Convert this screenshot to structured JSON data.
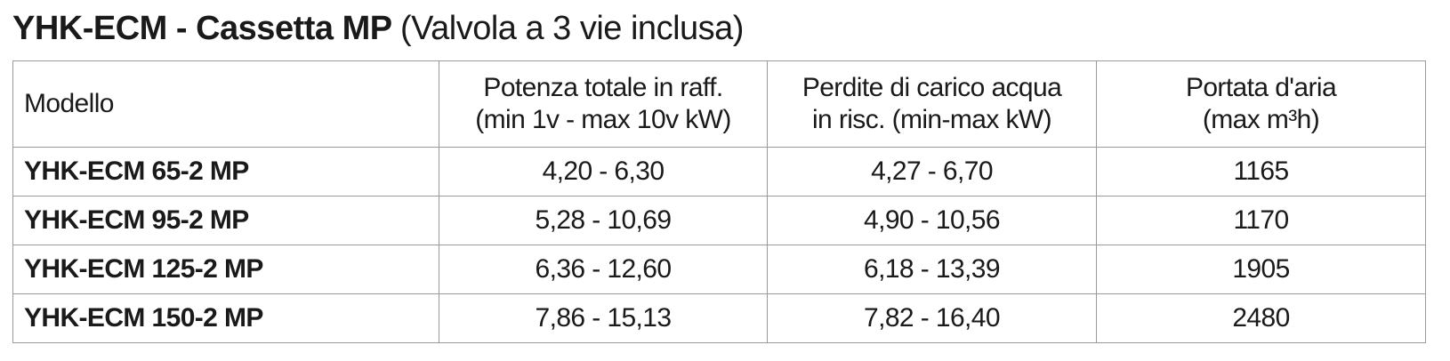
{
  "title": {
    "main": "YHK-ECM - Cassetta MP",
    "note": "(Valvola a 3 vie inclusa)"
  },
  "table": {
    "header": [
      [
        "Modello"
      ],
      [
        "Potenza totale in raff.",
        "(min 1v - max 10v kW)"
      ],
      [
        "Perdite di carico acqua",
        "in risc. (min-max kW)"
      ],
      [
        "Portata d'aria",
        "(max m³h)"
      ]
    ],
    "rows": [
      [
        "YHK-ECM 65-2 MP",
        "4,20 - 6,30",
        "4,27 - 6,70",
        "1165"
      ],
      [
        "YHK-ECM 95-2 MP",
        "5,28 - 10,69",
        "4,90 - 10,56",
        "1170"
      ],
      [
        "YHK-ECM 125-2 MP",
        "6,36 - 12,60",
        "6,18 - 13,39",
        "1905"
      ],
      [
        "YHK-ECM 150-2 MP",
        "7,86 - 15,13",
        "7,82 - 16,40",
        "2480"
      ]
    ]
  }
}
